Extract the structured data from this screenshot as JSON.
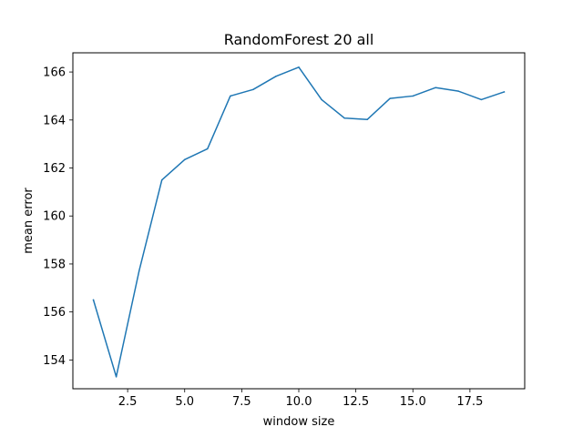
{
  "chart_data": {
    "type": "line",
    "title": "RandomForest 20 all",
    "xlabel": "window size",
    "ylabel": "mean error",
    "xlim": [
      0.1,
      19.9
    ],
    "ylim": [
      152.8,
      166.8
    ],
    "xticks": [
      2.5,
      5.0,
      7.5,
      10.0,
      12.5,
      15.0,
      17.5
    ],
    "xtick_labels": [
      "2.5",
      "5.0",
      "7.5",
      "10.0",
      "12.5",
      "15.0",
      "17.5"
    ],
    "yticks": [
      154,
      156,
      158,
      160,
      162,
      164,
      166
    ],
    "ytick_labels": [
      "154",
      "156",
      "158",
      "160",
      "162",
      "164",
      "166"
    ],
    "grid": false,
    "series": [
      {
        "color": "#1f77b4",
        "x": [
          1,
          2,
          3,
          4,
          5,
          6,
          7,
          8,
          9,
          10,
          11,
          12,
          13,
          14,
          15,
          16,
          17,
          18,
          19
        ],
        "y": [
          156.5,
          153.3,
          157.7,
          161.5,
          162.35,
          162.8,
          165.0,
          165.27,
          165.82,
          166.2,
          164.85,
          164.08,
          164.02,
          164.9,
          165.0,
          165.35,
          165.2,
          164.85,
          165.17
        ]
      }
    ]
  }
}
